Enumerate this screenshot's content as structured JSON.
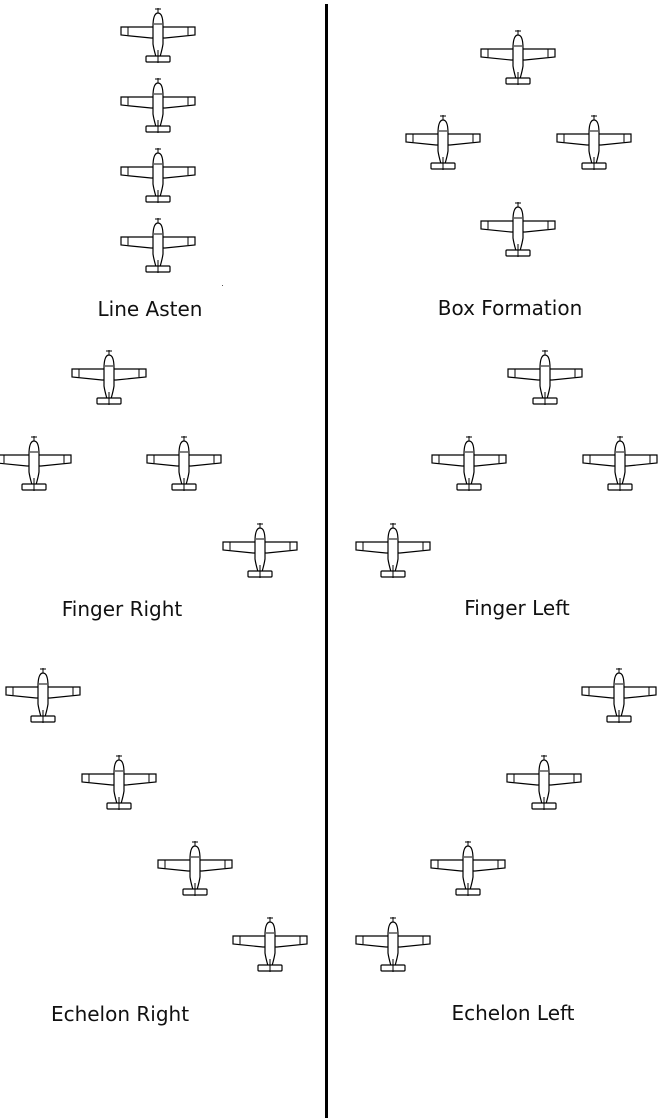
{
  "formations": [
    {
      "id": "line-asten",
      "label": "Line Asten",
      "plane_count": 4
    },
    {
      "id": "box-formation",
      "label": "Box Formation",
      "plane_count": 4
    },
    {
      "id": "finger-right",
      "label": "Finger Right",
      "plane_count": 4
    },
    {
      "id": "finger-left",
      "label": "Finger Left",
      "plane_count": 4
    },
    {
      "id": "echelon-right",
      "label": "Echelon Right",
      "plane_count": 4
    },
    {
      "id": "echelon-left",
      "label": "Echelon Left",
      "plane_count": 4
    }
  ],
  "icon": "airplane-top-view-icon"
}
